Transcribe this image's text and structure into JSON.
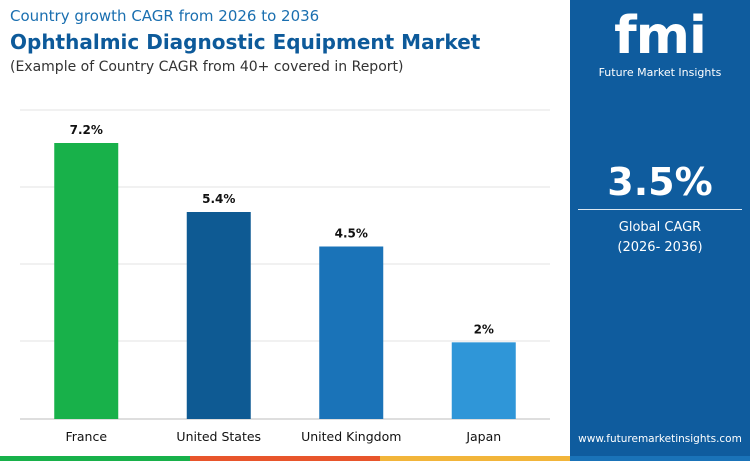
{
  "header": {
    "super_title": "Country growth CAGR from 2026 to 2036",
    "title": "Ophthalmic Diagnostic Equipment Market",
    "subtitle": "(Example of Country CAGR from 40+ covered in Report)"
  },
  "chart_data": {
    "type": "bar",
    "categories": [
      "France",
      "United States",
      "United Kingdom",
      "Japan"
    ],
    "values": [
      7.2,
      5.4,
      4.5,
      2
    ],
    "value_labels": [
      "7.2%",
      "5.4%",
      "4.5%",
      "2%"
    ],
    "bar_colors": [
      "#18b14a",
      "#0e5a93",
      "#1a73b8",
      "#2f96d8"
    ],
    "ylim": [
      0,
      7.2
    ],
    "grid": true
  },
  "side_panel": {
    "logo_text": "fmi",
    "logo_tagline": "Future Market Insights",
    "global_cagr_value": "3.5%",
    "global_cagr_label": "Global CAGR",
    "global_cagr_period": "(2026- 2036)",
    "website": "www.futuremarketinsights.com",
    "background_color": "#0f5c9e"
  },
  "footer_stripe_colors": [
    "#18b14a",
    "#e8552b",
    "#f2b53a",
    "#1a73b8"
  ]
}
